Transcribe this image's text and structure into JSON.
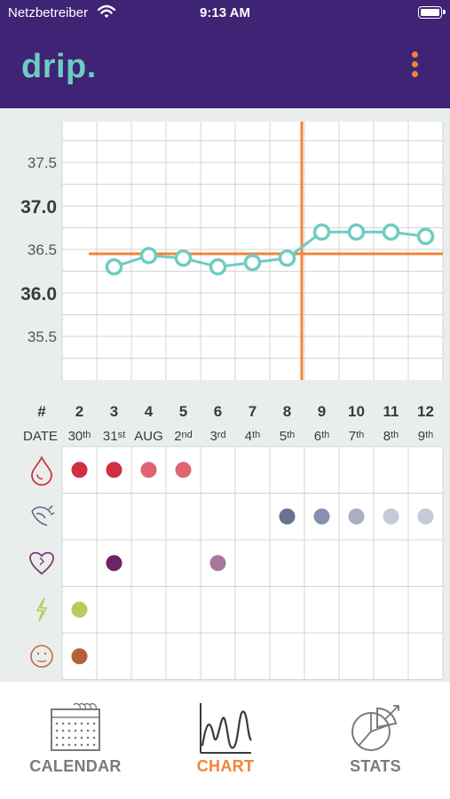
{
  "status_bar": {
    "carrier": "Netzbetreiber",
    "time": "9:13 AM",
    "battery_level": 1.0
  },
  "header": {
    "app_title": "drip.",
    "menu_icon": "more-vertical-icon"
  },
  "colors": {
    "header_bg": "#3f2374",
    "accent_teal": "#6dcdc1",
    "accent_orange": "#f38337",
    "chart_bg": "#e9eeec",
    "grid": "#d4d4d4"
  },
  "chart_data": {
    "type": "line",
    "y_ticks": [
      {
        "label": "37.5",
        "value": 37.5,
        "bold": false
      },
      {
        "label": "37.0",
        "value": 37.0,
        "bold": true
      },
      {
        "label": "36.5",
        "value": 36.5,
        "bold": false
      },
      {
        "label": "36.0",
        "value": 36.0,
        "bold": true
      },
      {
        "label": "35.5",
        "value": 35.5,
        "bold": false
      }
    ],
    "cycle_days": [
      "2",
      "3",
      "4",
      "5",
      "6",
      "7",
      "8",
      "9",
      "10",
      "11",
      "12"
    ],
    "date_label": "DATE",
    "cycle_day_label": "#",
    "dates": [
      {
        "num": "30",
        "suffix": "th"
      },
      {
        "num": "31",
        "suffix": "st"
      },
      {
        "num": "AUG",
        "suffix": ""
      },
      {
        "num": "2",
        "suffix": "nd"
      },
      {
        "num": "3",
        "suffix": "rd"
      },
      {
        "num": "4",
        "suffix": "th"
      },
      {
        "num": "5",
        "suffix": "th"
      },
      {
        "num": "6",
        "suffix": "th"
      },
      {
        "num": "7",
        "suffix": "th"
      },
      {
        "num": "8",
        "suffix": "th"
      },
      {
        "num": "9",
        "suffix": "th"
      }
    ],
    "temperature_series": [
      {
        "day": "3",
        "value": 36.3
      },
      {
        "day": "4",
        "value": 36.43
      },
      {
        "day": "5",
        "value": 36.4
      },
      {
        "day": "6",
        "value": 36.3
      },
      {
        "day": "7",
        "value": 36.35
      },
      {
        "day": "8",
        "value": 36.4
      },
      {
        "day": "9",
        "value": 36.7
      },
      {
        "day": "10",
        "value": 36.7
      },
      {
        "day": "11",
        "value": 36.7
      },
      {
        "day": "12",
        "value": 36.65
      }
    ],
    "cover_line": 36.45,
    "shift_after_day": "8",
    "symptom_rows": [
      {
        "icon": "bleeding-icon",
        "color": "#c8374a",
        "dots": [
          {
            "day": "2",
            "color": "#d12e3f"
          },
          {
            "day": "3",
            "color": "#d12e3f"
          },
          {
            "day": "4",
            "color": "#e06570"
          },
          {
            "day": "5",
            "color": "#e06570"
          }
        ]
      },
      {
        "icon": "mucus-icon",
        "color": "#5d6a8e",
        "dots": [
          {
            "day": "8",
            "color": "#6a7291"
          },
          {
            "day": "9",
            "color": "#8890ad"
          },
          {
            "day": "10",
            "color": "#a9aec4"
          },
          {
            "day": "11",
            "color": "#c6c9d8"
          },
          {
            "day": "12",
            "color": "#c6c9d8"
          }
        ]
      },
      {
        "icon": "sex-icon",
        "color": "#7c3a7a",
        "dots": [
          {
            "day": "3",
            "color": "#6d2462"
          },
          {
            "day": "6",
            "color": "#a8769f"
          }
        ]
      },
      {
        "icon": "pain-icon",
        "color": "#b9c95c",
        "dots": [
          {
            "day": "2",
            "color": "#b6cd5e"
          }
        ]
      },
      {
        "icon": "mood-icon",
        "color": "#bf6b3f",
        "dots": [
          {
            "day": "2",
            "color": "#b56138"
          }
        ]
      }
    ]
  },
  "tabs": [
    {
      "label": "CALENDAR",
      "icon": "calendar-icon",
      "active": false
    },
    {
      "label": "CHART",
      "icon": "chart-icon",
      "active": true
    },
    {
      "label": "STATS",
      "icon": "stats-icon",
      "active": false
    }
  ]
}
